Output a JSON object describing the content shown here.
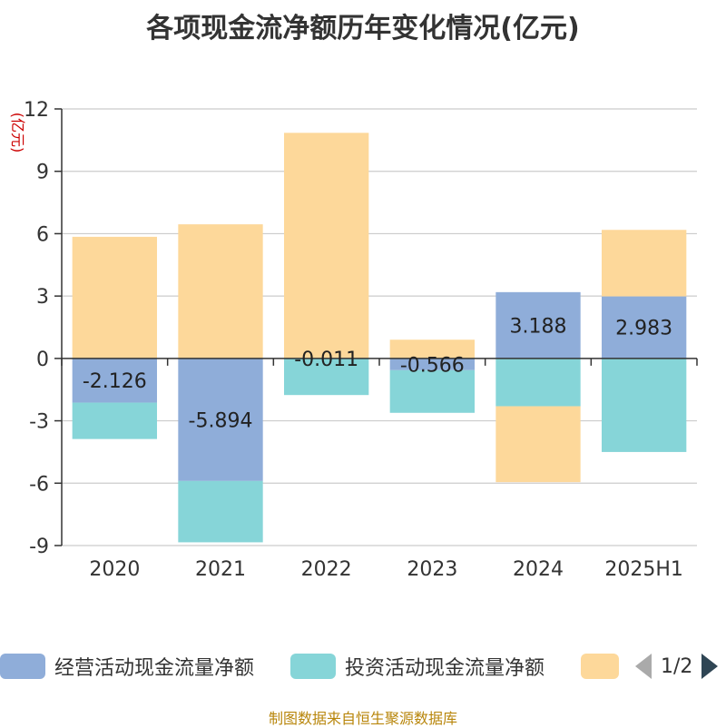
{
  "title": "各项现金流净额历年变化情况(亿元)",
  "source_note": "制图数据来自恒生聚源数据库",
  "pager": {
    "text": "1/2"
  },
  "chart_data": {
    "type": "bar",
    "stacked": true,
    "title": "各项现金流净额历年变化情况(亿元)",
    "ylabel": "(亿元)",
    "categories": [
      "2020",
      "2021",
      "2022",
      "2023",
      "2024",
      "2025H1"
    ],
    "ylim": [
      -9,
      12
    ],
    "yticks": [
      -9,
      -6,
      -3,
      0,
      3,
      6,
      9,
      12
    ],
    "grid": true,
    "legend_position": "bottom",
    "series": [
      {
        "name": "经营活动现金流量净额",
        "color": "#8fadd9",
        "values": [
          -2.126,
          -5.894,
          -0.011,
          -0.566,
          3.188,
          2.983
        ],
        "labels": [
          "-2.126",
          "-5.894",
          "-0.011",
          "-0.566",
          "3.188",
          "2.983"
        ]
      },
      {
        "name": "投资活动现金流量净额",
        "color": "#86d5d8",
        "values": [
          -1.75,
          -2.95,
          -1.75,
          -2.05,
          -2.3,
          -4.5
        ]
      },
      {
        "name": "",
        "color": "#fdd89a",
        "values": [
          5.85,
          6.45,
          10.85,
          0.9,
          -3.65,
          3.2
        ]
      }
    ]
  }
}
